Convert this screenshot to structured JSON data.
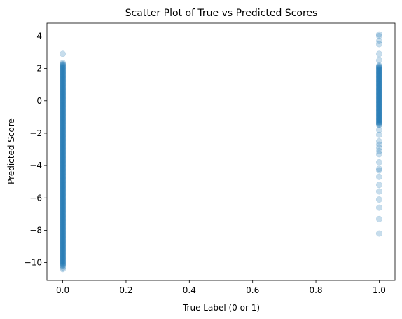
{
  "chart_data": {
    "type": "scatter",
    "title": "Scatter Plot of True vs Predicted Scores",
    "xlabel": "True Label (0 or 1)",
    "ylabel": "Predicted Score",
    "xlim": [
      -0.05,
      1.05
    ],
    "ylim": [
      -11.1,
      4.8
    ],
    "xticks": [
      0.0,
      0.2,
      0.4,
      0.6,
      0.8,
      1.0
    ],
    "xtick_labels": [
      "0.0",
      "0.2",
      "0.4",
      "0.6",
      "0.8",
      "1.0"
    ],
    "yticks": [
      -10,
      -8,
      -6,
      -4,
      -2,
      0,
      2,
      4
    ],
    "ytick_labels": [
      "−10",
      "−8",
      "−6",
      "−4",
      "−2",
      "0",
      "2",
      "4"
    ],
    "grid": false,
    "marker_color": "#1f77b4",
    "marker_alpha": 0.25,
    "series": [
      {
        "x_value": 0,
        "dense_range": [
          -10.2,
          2.3
        ],
        "outliers": [
          2.9,
          2.35,
          -10.3,
          -10.4
        ]
      },
      {
        "x_value": 1,
        "dense_range": [
          -1.5,
          2.2
        ],
        "outliers": [
          4.1,
          4.0,
          3.7,
          3.5,
          2.9,
          2.5,
          -1.8,
          -2.1,
          -2.5,
          -2.7,
          -2.9,
          -3.1,
          -3.3,
          -3.8,
          -4.2,
          -4.3,
          -4.7,
          -5.2,
          -5.6,
          -6.1,
          -6.6,
          -7.3,
          -8.2
        ]
      }
    ]
  }
}
